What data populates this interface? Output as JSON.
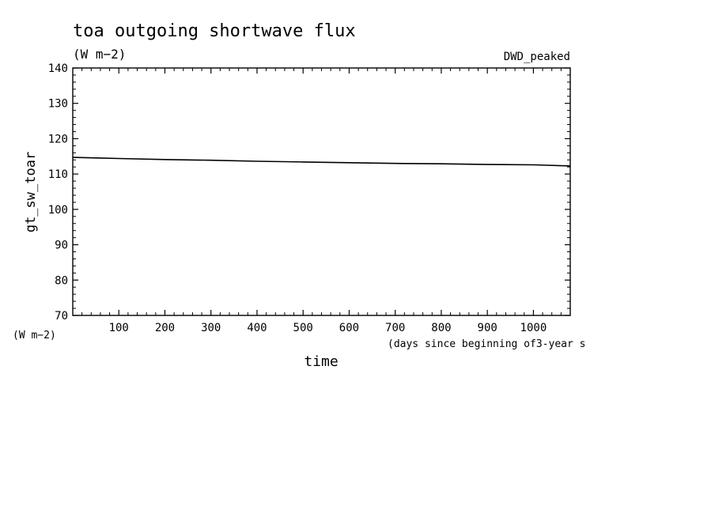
{
  "chart_data": {
    "type": "line",
    "title": "toa outgoing shortwave flux",
    "subtitle": "(W m−2)",
    "annotation": "DWD_peaked",
    "ylabel": "gt_sw_toar",
    "yunit": "(W m−2)",
    "xlabel": "time",
    "xunit": "(days since beginning of3-year s",
    "xlim": [
      0,
      1080
    ],
    "ylim": [
      70,
      140
    ],
    "xticks": [
      100,
      200,
      300,
      400,
      500,
      600,
      700,
      800,
      900,
      1000
    ],
    "yticks": [
      70,
      80,
      90,
      100,
      110,
      120,
      130,
      140
    ],
    "grid": false,
    "series": [
      {
        "color": "#000000",
        "x": [
          0,
          100,
          200,
          300,
          400,
          500,
          600,
          700,
          800,
          900,
          1000,
          1080
        ],
        "y": [
          114.7,
          114.4,
          114.1,
          113.9,
          113.6,
          113.4,
          113.2,
          113.0,
          112.9,
          112.7,
          112.6,
          112.3
        ]
      }
    ]
  }
}
